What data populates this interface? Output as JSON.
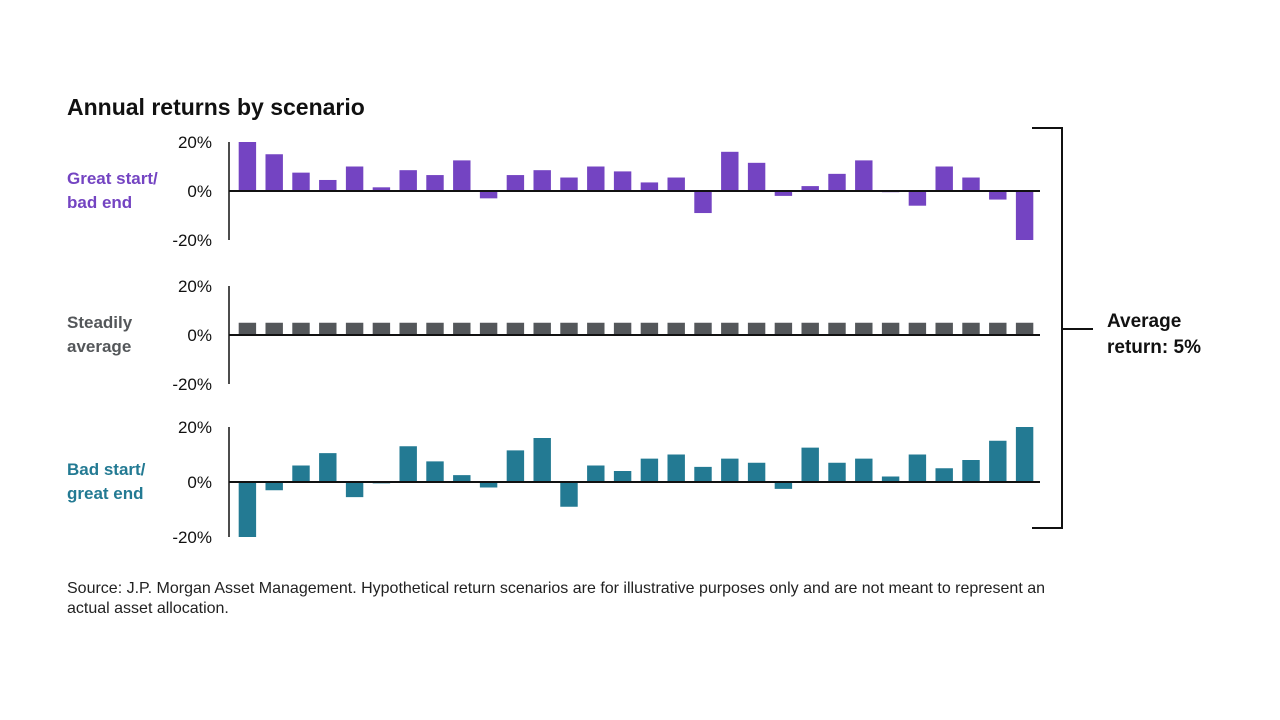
{
  "chart_data": {
    "type": "bar",
    "title": "Annual returns by scenario",
    "ylim": [
      -20,
      20
    ],
    "yticks": [
      "20%",
      "0%",
      "-20%"
    ],
    "annotation": [
      "Average",
      "return: 5%"
    ],
    "source": [
      "Source: J.P. Morgan Asset Management. Hypothetical return scenarios are for illustrative purposes only and are not meant to represent an",
      "actual asset allocation."
    ],
    "series": [
      {
        "name_lines": [
          "Great start/",
          "bad end"
        ],
        "color": "#7444C2",
        "values": [
          20,
          15,
          7.5,
          4.5,
          10,
          1.5,
          8.5,
          6.5,
          12.5,
          -3,
          6.5,
          8.5,
          5.5,
          10,
          8,
          3.5,
          5.5,
          -9,
          16,
          11.5,
          -2,
          2,
          7,
          12.5,
          -0.5,
          -6,
          10,
          5.5,
          -3.5,
          -20
        ]
      },
      {
        "name_lines": [
          "Steadily",
          "average"
        ],
        "color": "#54575A",
        "values": [
          5,
          5,
          5,
          5,
          5,
          5,
          5,
          5,
          5,
          5,
          5,
          5,
          5,
          5,
          5,
          5,
          5,
          5,
          5,
          5,
          5,
          5,
          5,
          5,
          5,
          5,
          5,
          5,
          5,
          5
        ]
      },
      {
        "name_lines": [
          "Bad start/",
          "great end"
        ],
        "color": "#237A93",
        "values": [
          -20,
          -3,
          6,
          10.5,
          -5.5,
          -0.5,
          13,
          7.5,
          2.5,
          -2,
          11.5,
          16,
          -9,
          6,
          4,
          8.5,
          10,
          5.5,
          8.5,
          7,
          -2.5,
          12.5,
          7,
          8.5,
          2,
          10,
          5,
          8,
          15,
          20
        ]
      }
    ]
  }
}
